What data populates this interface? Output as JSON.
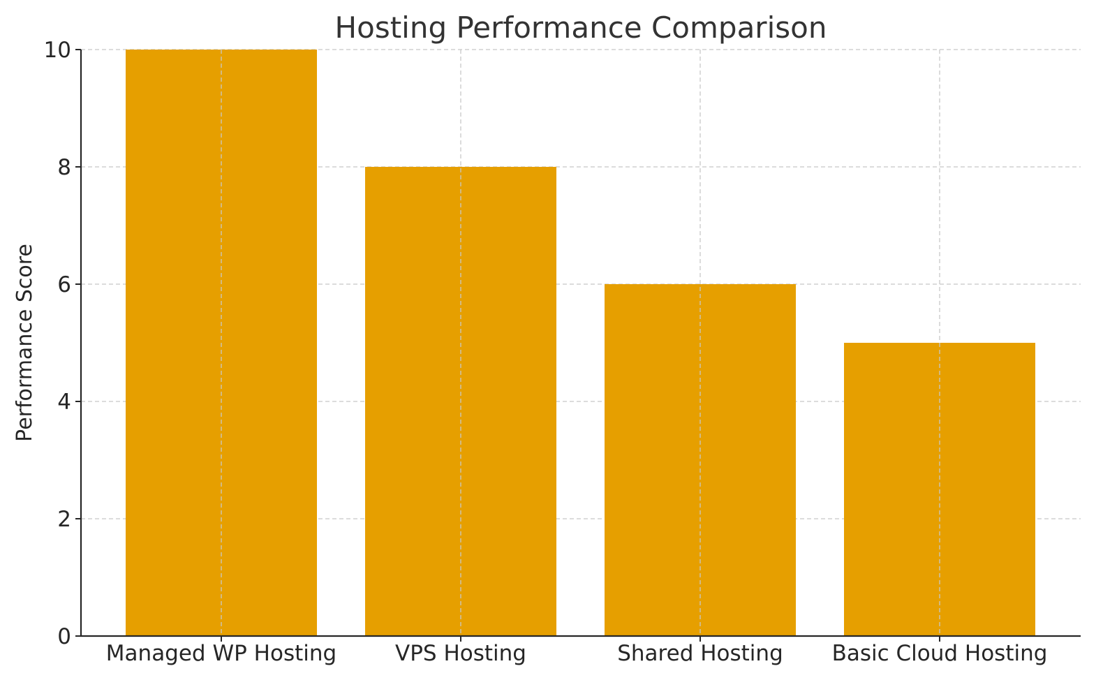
{
  "chart_data": {
    "type": "bar",
    "title": "Hosting Performance Comparison",
    "xlabel": "",
    "ylabel": "Performance Score",
    "categories": [
      "Managed WP Hosting",
      "VPS Hosting",
      "Shared Hosting",
      "Basic Cloud Hosting"
    ],
    "values": [
      10,
      8,
      6,
      5
    ],
    "ylim": [
      0,
      10
    ],
    "yticks": [
      0,
      2,
      4,
      6,
      8,
      10
    ],
    "grid": true,
    "bar_color": "#E69F00"
  }
}
